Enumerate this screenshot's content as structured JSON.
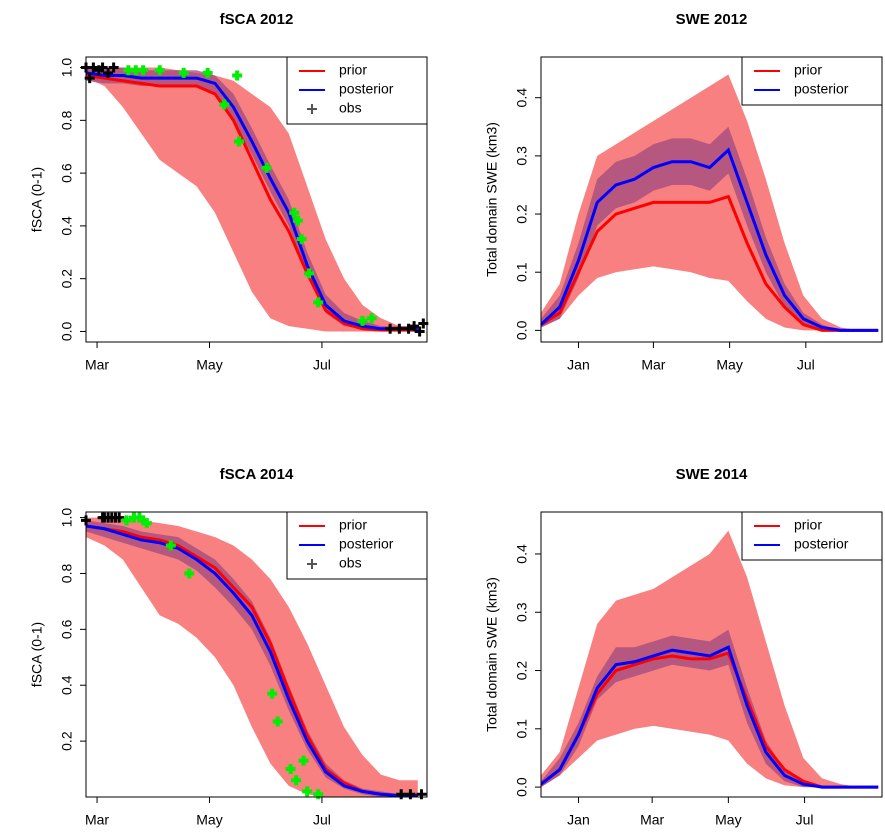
{
  "chart_data": [
    {
      "type": "line",
      "title": "fSCA 2012",
      "ylabel": "fSCA (0-1)",
      "legend": "topright",
      "x": [
        55,
        65,
        75,
        85,
        95,
        105,
        115,
        125,
        135,
        145,
        155,
        165,
        175,
        185,
        195,
        205,
        215,
        225,
        235
      ],
      "xlim": [
        55,
        240
      ],
      "xticks": [
        {
          "value": 61,
          "label": "Mar"
        },
        {
          "value": 122,
          "label": "May"
        },
        {
          "value": 183,
          "label": "Jul"
        }
      ],
      "ylim": [
        -0.04,
        1.04
      ],
      "yticks": [
        {
          "value": 0,
          "label": "0.0"
        },
        0.2,
        0.4,
        0.6,
        0.8,
        {
          "value": 1,
          "label": "1.0"
        }
      ],
      "bands": [
        {
          "color": "#f88080",
          "lower": [
            0.96,
            0.93,
            0.85,
            0.75,
            0.65,
            0.6,
            0.55,
            0.45,
            0.3,
            0.15,
            0.05,
            0.02,
            0.01,
            0,
            0,
            0,
            0,
            0,
            0
          ],
          "upper": [
            1,
            1,
            1,
            1,
            1,
            0.99,
            0.98,
            0.97,
            0.95,
            0.9,
            0.85,
            0.75,
            0.55,
            0.35,
            0.2,
            0.1,
            0.05,
            0.02,
            0.02
          ]
        },
        {
          "color": "#a04a80",
          "lower": [
            0.95,
            0.94,
            0.94,
            0.93,
            0.93,
            0.93,
            0.93,
            0.9,
            0.8,
            0.67,
            0.53,
            0.4,
            0.21,
            0.07,
            0.02,
            0.01,
            0,
            0,
            0
          ],
          "upper": [
            1,
            1,
            1,
            0.99,
            0.99,
            0.99,
            0.99,
            0.97,
            0.9,
            0.77,
            0.63,
            0.5,
            0.3,
            0.14,
            0.07,
            0.04,
            0.02,
            0.02,
            0.02
          ]
        }
      ],
      "series": [
        {
          "name": "prior",
          "color": "#ff0000",
          "values": [
            0.97,
            0.96,
            0.95,
            0.94,
            0.93,
            0.93,
            0.93,
            0.9,
            0.8,
            0.65,
            0.5,
            0.38,
            0.22,
            0.08,
            0.03,
            0.01,
            0.005,
            0.005,
            0.005
          ]
        },
        {
          "name": "posterior",
          "color": "#0000ff",
          "values": [
            0.98,
            0.97,
            0.97,
            0.96,
            0.96,
            0.96,
            0.96,
            0.94,
            0.85,
            0.72,
            0.58,
            0.45,
            0.25,
            0.1,
            0.04,
            0.02,
            0.01,
            0.01,
            0.01
          ]
        }
      ],
      "obs_legend": {
        "name": "obs",
        "color": "#555555"
      },
      "markers": [
        {
          "color": "#000000",
          "x": [
            55,
            57,
            59,
            62,
            64,
            67,
            70,
            220,
            225,
            230,
            233,
            236,
            238
          ],
          "values": [
            1,
            0.96,
            1,
            0.99,
            1,
            0.98,
            1,
            0.01,
            0.01,
            0.01,
            0.02,
            0,
            0.03
          ]
        },
        {
          "color": "#00ee00",
          "x": [
            78,
            82,
            86,
            95,
            108,
            121,
            137,
            130,
            138,
            153,
            168,
            170,
            172,
            176,
            181,
            205,
            210
          ],
          "values": [
            0.99,
            0.99,
            0.99,
            0.99,
            0.98,
            0.98,
            0.97,
            0.86,
            0.72,
            0.62,
            0.45,
            0.42,
            0.35,
            0.22,
            0.11,
            0.04,
            0.05
          ]
        }
      ]
    },
    {
      "type": "line",
      "title": "SWE 2012",
      "ylabel": "Total domain SWE (km3)",
      "legend": "topright",
      "x": [
        62,
        77,
        92,
        107,
        122,
        137,
        152,
        167,
        182,
        197,
        212,
        227,
        242,
        257,
        272,
        287,
        302,
        317,
        332
      ],
      "xlim": [
        62,
        335
      ],
      "xticks": [
        {
          "value": 92,
          "label": "Jan"
        },
        {
          "value": 152,
          "label": "Mar"
        },
        {
          "value": 213,
          "label": "May"
        },
        {
          "value": 274,
          "label": "Jul"
        }
      ],
      "ylim": [
        -0.02,
        0.47
      ],
      "yticks": [
        {
          "value": 0,
          "label": "0.0"
        },
        0.1,
        0.2,
        0.3,
        0.4
      ],
      "bands": [
        {
          "color": "#f88080",
          "lower": [
            0.005,
            0.02,
            0.06,
            0.09,
            0.1,
            0.105,
            0.11,
            0.105,
            0.1,
            0.09,
            0.085,
            0.05,
            0.02,
            0.005,
            0,
            0,
            0,
            0,
            0
          ],
          "upper": [
            0.03,
            0.08,
            0.2,
            0.3,
            0.32,
            0.34,
            0.36,
            0.38,
            0.4,
            0.42,
            0.44,
            0.36,
            0.26,
            0.15,
            0.06,
            0.02,
            0.005,
            0,
            0
          ]
        },
        {
          "color": "#a04a80",
          "lower": [
            0.005,
            0.02,
            0.09,
            0.18,
            0.21,
            0.22,
            0.24,
            0.25,
            0.25,
            0.24,
            0.27,
            0.18,
            0.1,
            0.04,
            0.01,
            0,
            0,
            0,
            0
          ],
          "upper": [
            0.02,
            0.06,
            0.15,
            0.26,
            0.29,
            0.3,
            0.32,
            0.33,
            0.33,
            0.32,
            0.35,
            0.26,
            0.16,
            0.08,
            0.03,
            0.01,
            0,
            0,
            0
          ]
        }
      ],
      "series": [
        {
          "name": "prior",
          "color": "#ff0000",
          "values": [
            0.01,
            0.03,
            0.1,
            0.17,
            0.2,
            0.21,
            0.22,
            0.22,
            0.22,
            0.22,
            0.23,
            0.15,
            0.08,
            0.04,
            0.01,
            0,
            0,
            0,
            0
          ]
        },
        {
          "name": "posterior",
          "color": "#0000ff",
          "values": [
            0.01,
            0.04,
            0.12,
            0.22,
            0.25,
            0.26,
            0.28,
            0.29,
            0.29,
            0.28,
            0.31,
            0.22,
            0.13,
            0.06,
            0.02,
            0.005,
            0,
            0,
            0
          ]
        }
      ]
    },
    {
      "type": "line",
      "title": "fSCA 2014",
      "ylabel": "fSCA (0-1)",
      "legend": "topright",
      "x": [
        54,
        64,
        74,
        84,
        94,
        104,
        114,
        124,
        134,
        144,
        154,
        164,
        174,
        184,
        194,
        204,
        214,
        224,
        234
      ],
      "xlim": [
        54,
        239
      ],
      "xticks": [
        {
          "value": 60,
          "label": "Mar"
        },
        {
          "value": 121,
          "label": "May"
        },
        {
          "value": 182,
          "label": "Jul"
        }
      ],
      "ylim": [
        0,
        1.02
      ],
      "yticks": [
        0.2,
        0.4,
        0.6,
        0.8,
        {
          "value": 1,
          "label": "1.0"
        }
      ],
      "bands": [
        {
          "color": "#f88080",
          "lower": [
            0.93,
            0.9,
            0.85,
            0.75,
            0.65,
            0.62,
            0.57,
            0.5,
            0.4,
            0.25,
            0.12,
            0.04,
            0.01,
            0,
            0,
            0,
            0,
            0,
            0
          ],
          "upper": [
            1,
            1,
            1,
            0.99,
            0.98,
            0.97,
            0.95,
            0.93,
            0.9,
            0.85,
            0.78,
            0.68,
            0.55,
            0.4,
            0.25,
            0.15,
            0.08,
            0.06,
            0.06
          ]
        },
        {
          "color": "#a04a80",
          "lower": [
            0.95,
            0.93,
            0.91,
            0.89,
            0.87,
            0.85,
            0.81,
            0.75,
            0.68,
            0.6,
            0.47,
            0.31,
            0.17,
            0.07,
            0.03,
            0.01,
            0,
            0,
            0
          ],
          "upper": [
            0.99,
            0.98,
            0.97,
            0.95,
            0.94,
            0.93,
            0.89,
            0.85,
            0.78,
            0.7,
            0.57,
            0.4,
            0.24,
            0.12,
            0.06,
            0.03,
            0.02,
            0.01,
            0.01
          ]
        }
      ],
      "series": [
        {
          "name": "prior",
          "color": "#ff0000",
          "values": [
            0.97,
            0.96,
            0.95,
            0.93,
            0.92,
            0.9,
            0.86,
            0.82,
            0.75,
            0.68,
            0.55,
            0.38,
            0.22,
            0.1,
            0.05,
            0.02,
            0.01,
            0.005,
            0.005
          ]
        },
        {
          "name": "posterior",
          "color": "#0000ff",
          "values": [
            0.97,
            0.96,
            0.94,
            0.92,
            0.91,
            0.89,
            0.85,
            0.8,
            0.73,
            0.65,
            0.52,
            0.35,
            0.2,
            0.09,
            0.04,
            0.02,
            0.01,
            0.005,
            0.005
          ]
        }
      ],
      "obs_legend": {
        "name": "obs",
        "color": "#555555"
      },
      "markers": [
        {
          "color": "#000000",
          "x": [
            54,
            63,
            64,
            66,
            68,
            70,
            72,
            225,
            230,
            236
          ],
          "values": [
            0.99,
            1,
            1,
            1,
            1,
            1,
            1,
            0.01,
            0.01,
            0.01
          ]
        },
        {
          "color": "#00ee00",
          "x": [
            76,
            80,
            83,
            85,
            87,
            100,
            110,
            155,
            158,
            165,
            168,
            172,
            174,
            180
          ],
          "values": [
            0.99,
            1,
            1,
            0.99,
            0.98,
            0.9,
            0.8,
            0.37,
            0.27,
            0.1,
            0.06,
            0.13,
            0.02,
            0.01
          ]
        }
      ]
    },
    {
      "type": "line",
      "title": "SWE 2014",
      "ylabel": "Total domain SWE (km3)",
      "legend": "topright",
      "x": [
        62,
        77,
        92,
        107,
        122,
        137,
        152,
        167,
        182,
        197,
        212,
        227,
        242,
        257,
        272,
        287,
        302,
        317,
        332
      ],
      "xlim": [
        62,
        335
      ],
      "xticks": [
        {
          "value": 92,
          "label": "Jan"
        },
        {
          "value": 151,
          "label": "Mar"
        },
        {
          "value": 212,
          "label": "May"
        },
        {
          "value": 273,
          "label": "Jul"
        }
      ],
      "ylim": [
        -0.017,
        0.472
      ],
      "yticks": [
        {
          "value": 0,
          "label": "0.0"
        },
        0.1,
        0.2,
        0.3,
        0.4
      ],
      "bands": [
        {
          "color": "#f88080",
          "lower": [
            0,
            0.02,
            0.05,
            0.08,
            0.09,
            0.1,
            0.105,
            0.1,
            0.095,
            0.09,
            0.08,
            0.04,
            0.015,
            0.003,
            0,
            0,
            0,
            0,
            0
          ],
          "upper": [
            0.02,
            0.06,
            0.17,
            0.28,
            0.32,
            0.33,
            0.34,
            0.36,
            0.38,
            0.4,
            0.44,
            0.36,
            0.25,
            0.14,
            0.05,
            0.015,
            0.005,
            0,
            0
          ]
        },
        {
          "color": "#a04a80",
          "lower": [
            0,
            0.02,
            0.07,
            0.15,
            0.18,
            0.19,
            0.2,
            0.21,
            0.205,
            0.2,
            0.21,
            0.11,
            0.04,
            0.01,
            0,
            0,
            0,
            0,
            0
          ],
          "upper": [
            0.01,
            0.05,
            0.11,
            0.19,
            0.24,
            0.24,
            0.25,
            0.26,
            0.255,
            0.25,
            0.27,
            0.17,
            0.08,
            0.03,
            0.01,
            0,
            0,
            0,
            0
          ]
        }
      ],
      "series": [
        {
          "name": "prior",
          "color": "#ff0000",
          "values": [
            0.005,
            0.03,
            0.09,
            0.16,
            0.2,
            0.21,
            0.22,
            0.225,
            0.22,
            0.22,
            0.23,
            0.15,
            0.07,
            0.03,
            0.01,
            0,
            0,
            0,
            0
          ]
        },
        {
          "name": "posterior",
          "color": "#0000ff",
          "values": [
            0.005,
            0.03,
            0.09,
            0.17,
            0.21,
            0.215,
            0.225,
            0.235,
            0.23,
            0.225,
            0.24,
            0.14,
            0.06,
            0.02,
            0.005,
            0,
            0,
            0,
            0
          ]
        }
      ]
    }
  ]
}
